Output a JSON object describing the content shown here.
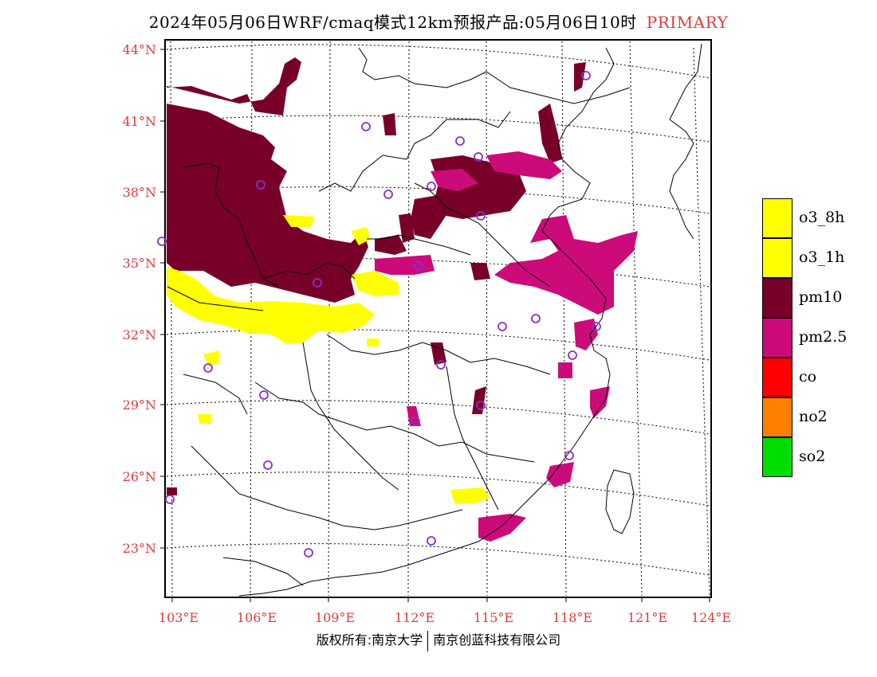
{
  "header": {
    "title": "2024年05月06日WRF/cmaq模式12km预报产品:05月06日10时",
    "tag": "PRIMARY"
  },
  "map": {
    "lat_labels": [
      "44°N",
      "41°N",
      "38°N",
      "35°N",
      "32°N",
      "29°N",
      "26°N",
      "23°N"
    ],
    "lon_labels": [
      "103°E",
      "106°E",
      "109°E",
      "112°E",
      "115°E",
      "118°E",
      "121°E",
      "124°E"
    ],
    "layer_colors": {
      "pm10": "#780028",
      "pm2_5": "#cc0a7a",
      "o3": "#ffff00",
      "station": "#8b2fc9",
      "border": "#000000"
    }
  },
  "legend": {
    "items": [
      {
        "label": "o3_8h",
        "color": "#ffff00"
      },
      {
        "label": "o3_1h",
        "color": "#ffff00"
      },
      {
        "label": "pm10",
        "color": "#780028"
      },
      {
        "label": "pm2.5",
        "color": "#cc0a7a"
      },
      {
        "label": "co",
        "color": "#ff0000"
      },
      {
        "label": "no2",
        "color": "#ff7f00"
      },
      {
        "label": "so2",
        "color": "#00dd00"
      }
    ]
  },
  "footer": {
    "left": "版权所有:南京大学",
    "right": "南京创蓝科技有限公司"
  }
}
